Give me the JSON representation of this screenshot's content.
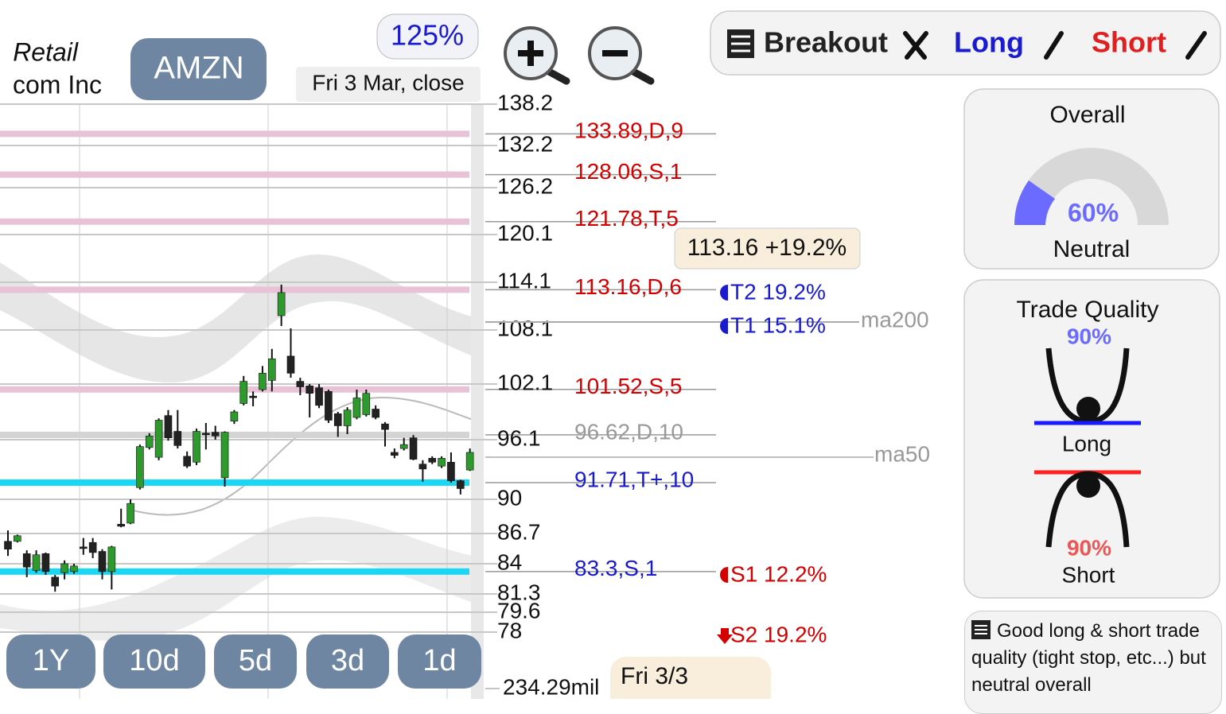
{
  "header": {
    "sector": "Retail",
    "company": "com Inc",
    "ticker": "AMZN",
    "zoom": "125%",
    "date": "Fri 3 Mar, close"
  },
  "toolbar": {
    "breakout": "Breakout",
    "long": "Long",
    "short": "Short"
  },
  "chart_data": {
    "type": "candlestick",
    "ylim": [
      78,
      138.2
    ],
    "yticks": [
      138.2,
      132.2,
      126.2,
      120.1,
      114.1,
      108.1,
      102.1,
      96.1,
      90,
      86.7,
      84,
      81.3,
      79.6,
      78
    ],
    "candles": {
      "open": [
        86.0,
        86.0,
        84.9,
        83.4,
        84.9,
        82.8,
        83.2,
        83.3,
        85.5,
        85.9,
        85.1,
        83.3,
        87.6,
        87.7,
        91.2,
        95.3,
        94.3,
        98.7,
        97.0,
        94.4,
        93.8,
        96.8,
        96.9,
        92.2,
        98.1,
        100.0,
        100.8,
        101.5,
        102.5,
        109.9,
        105.2,
        102.4,
        101.9,
        101.7,
        101.3,
        98.9,
        97.6,
        98.5,
        98.8,
        99.4,
        97.8,
        94.8,
        95.2,
        96.3,
        93.6,
        94.2,
        93.4,
        93.8,
        91.9,
        93.0
      ],
      "high": [
        87.0,
        86.6,
        85.2,
        85.2,
        85.0,
        83.0,
        84.3,
        84.0,
        86.3,
        86.3,
        85.3,
        85.6,
        89.1,
        90.0,
        95.6,
        96.8,
        98.4,
        99.3,
        99.3,
        94.9,
        97.3,
        97.9,
        97.6,
        97.0,
        99.3,
        103.0,
        101.3,
        104.1,
        106.0,
        113.8,
        108.3,
        102.8,
        102.1,
        102.1,
        101.5,
        99.1,
        99.6,
        101.5,
        101.5,
        99.8,
        98.0,
        95.2,
        96.3,
        96.6,
        94.0,
        94.4,
        94.4,
        94.8,
        92.0,
        95.2
      ],
      "low": [
        84.7,
        85.9,
        82.8,
        83.2,
        83.0,
        81.5,
        82.6,
        83.1,
        84.8,
        84.5,
        82.6,
        81.7,
        87.3,
        87.6,
        91.0,
        95.1,
        94.0,
        96.0,
        95.2,
        93.2,
        93.5,
        95.1,
        96.1,
        91.3,
        97.8,
        99.8,
        99.7,
        101.3,
        101.3,
        108.6,
        102.8,
        100.9,
        98.5,
        99.5,
        97.9,
        96.4,
        96.7,
        98.3,
        98.6,
        98.3,
        95.4,
        94.2,
        95.0,
        94.0,
        91.8,
        93.6,
        93.2,
        91.7,
        90.5,
        92.9
      ],
      "close": [
        85.3,
        86.5,
        83.7,
        84.8,
        83.3,
        82.0,
        84.0,
        83.8,
        85.4,
        85.0,
        83.3,
        85.5,
        87.4,
        89.6,
        95.4,
        96.5,
        98.2,
        96.3,
        95.5,
        93.4,
        97.0,
        96.7,
        96.5,
        96.9,
        99.1,
        102.4,
        100.7,
        103.3,
        104.9,
        112.8,
        103.3,
        101.8,
        101.1,
        99.8,
        98.2,
        97.6,
        99.3,
        100.6,
        101.1,
        98.5,
        97.2,
        94.5,
        95.6,
        94.1,
        93.1,
        93.8,
        94.2,
        91.9,
        91.1,
        94.8
      ]
    },
    "up_color": "#2e9a2e",
    "down_color": "#222222",
    "levels": [
      {
        "value": 133.89,
        "label": "133.89,D,9",
        "color": "#e8c3d8",
        "label_color": "#d40000"
      },
      {
        "value": 128.06,
        "label": "128.06,S,1",
        "color": "#e8c3d8",
        "label_color": "#d40000"
      },
      {
        "value": 121.78,
        "label": "121.78,T,5",
        "color": "#e8c3d8",
        "label_color": "#d40000"
      },
      {
        "value": 113.16,
        "label": "113.16,D,6",
        "color": "#e8c3d8",
        "label_color": "#d40000"
      },
      {
        "value": 101.52,
        "label": "101.52,S,5",
        "color": "#e8c3d8",
        "label_color": "#d40000"
      },
      {
        "value": 96.62,
        "label": "96.62,D,10",
        "color": "#d4d4d4",
        "label_color": "#999999"
      },
      {
        "value": 91.71,
        "label": "91.71,T+,10",
        "color": "#1ad8f5",
        "label_color": "#1a1ad0"
      },
      {
        "value": 83.3,
        "label": "83.3,S,1",
        "color": "#1ad8f5",
        "label_color": "#1a1ad0"
      }
    ],
    "targets": [
      "T2 19.2%",
      "T1 15.1%",
      "S1 12.2%",
      "S2 19.2%"
    ],
    "price_tag": "113.16 +19.2%",
    "ma_labels": [
      "ma200",
      "ma50"
    ],
    "volume": "234.29mil",
    "date_label": "Fri 3/3",
    "periods": [
      "1Y",
      "10d",
      "5d",
      "3d",
      "1d"
    ]
  },
  "overall": {
    "title": "Overall",
    "value": "60%",
    "status": "Neutral"
  },
  "trade_quality": {
    "title": "Trade Quality",
    "long_value": "90%",
    "long": "Long",
    "short_value": "90%",
    "short": "Short"
  },
  "note": "Good long & short trade quality (tight stop, etc...) but neutral overall"
}
